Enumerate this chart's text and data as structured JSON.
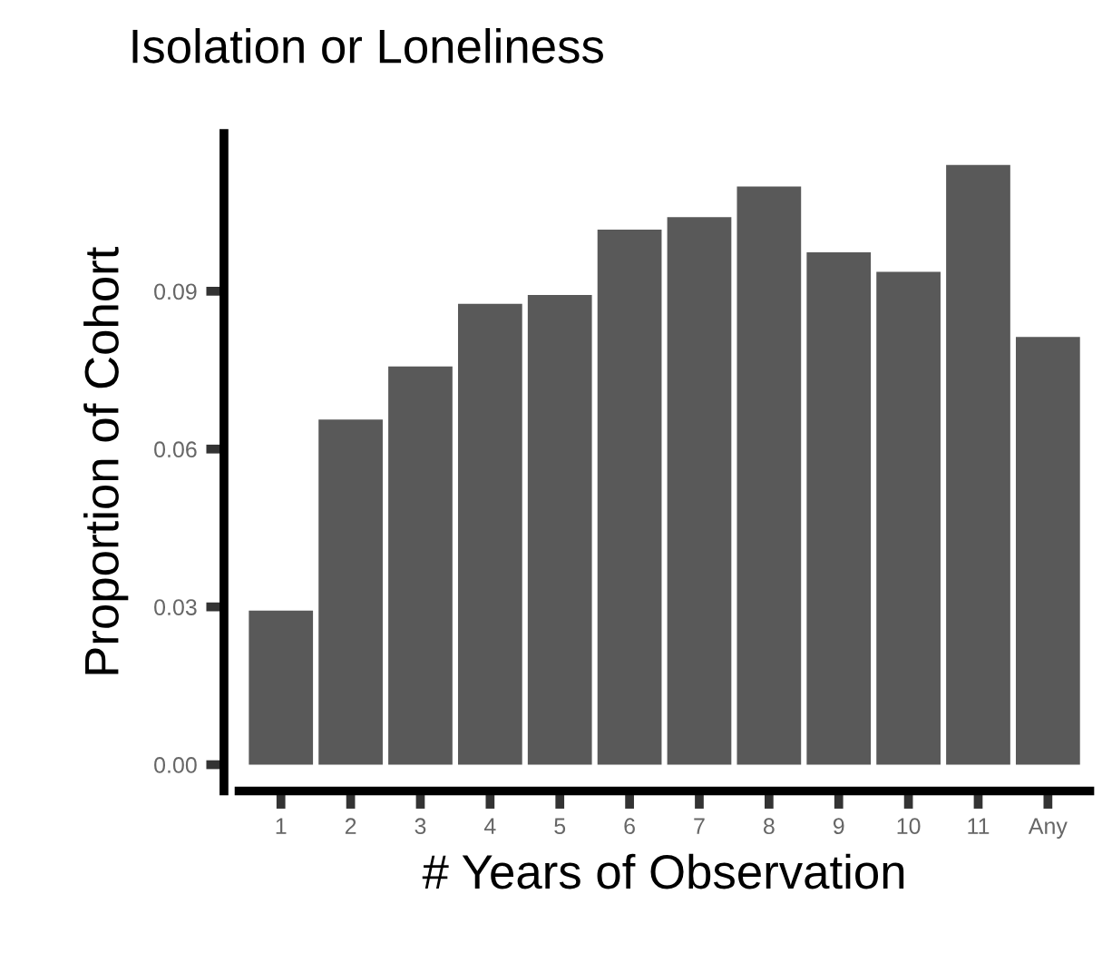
{
  "chart_data": {
    "type": "bar",
    "title": "Isolation or Loneliness",
    "xlabel": "# Years of Observation",
    "ylabel": "Proportion of Cohort",
    "categories": [
      "1",
      "2",
      "3",
      "4",
      "5",
      "6",
      "7",
      "8",
      "9",
      "10",
      "11",
      "Any"
    ],
    "values": [
      0.0293,
      0.0656,
      0.0757,
      0.0876,
      0.0893,
      0.1017,
      0.1041,
      0.1099,
      0.0974,
      0.0937,
      0.114,
      0.0813
    ],
    "color": "#595959",
    "ylim": [
      -0.005,
      0.12
    ],
    "yticks": [
      {
        "value": 0,
        "label": "0.00"
      },
      {
        "value": 0.03,
        "label": "0.03"
      },
      {
        "value": 0.06,
        "label": "0.06"
      },
      {
        "value": 0.09,
        "label": "0.09"
      }
    ],
    "grid": false
  }
}
